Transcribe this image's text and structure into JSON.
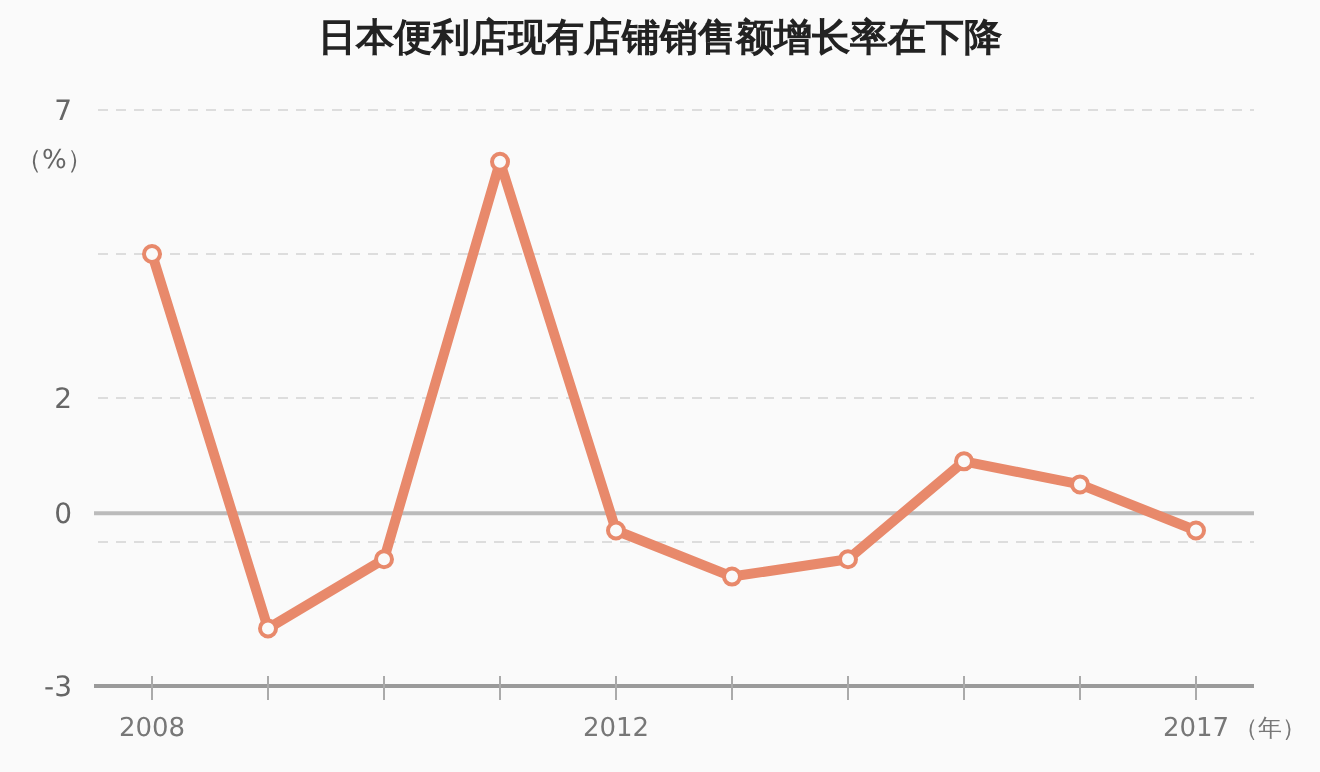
{
  "chart_data": {
    "type": "line",
    "title": "日本便利店现有店铺销售额增长率在下降",
    "xlabel": "（年）",
    "ylabel": "（%）",
    "x": [
      2008,
      2009,
      2010,
      2011,
      2012,
      2013,
      2014,
      2015,
      2016,
      2017
    ],
    "series": [
      {
        "color": "#e8896b",
        "values": [
          4.5,
          -2.0,
          -0.8,
          6.1,
          -0.3,
          -1.1,
          -0.8,
          0.9,
          0.5,
          -0.3
        ]
      }
    ],
    "xlim": [
      2007.5,
      2017.5
    ],
    "xticks": [
      2008,
      {
        "value": 2009,
        "label": null
      },
      {
        "value": 2010,
        "label": null
      },
      {
        "value": 2011,
        "label": null
      },
      2012,
      {
        "value": 2013,
        "label": null
      },
      {
        "value": 2014,
        "label": null
      },
      {
        "value": 2015,
        "label": null
      },
      {
        "value": 2016,
        "label": null
      },
      2017
    ],
    "ylim": [
      -3,
      7
    ],
    "yticks": [
      -3,
      {
        "value": -0.5,
        "label": null
      },
      0,
      2,
      {
        "value": 4.5,
        "label": null
      },
      7
    ],
    "ref_lines": [
      {
        "axis": "y",
        "value": 0,
        "color": "#bbbbbb",
        "line_style": "solid"
      }
    ],
    "grid": "y",
    "marker": "circle",
    "line_style": "solid"
  }
}
